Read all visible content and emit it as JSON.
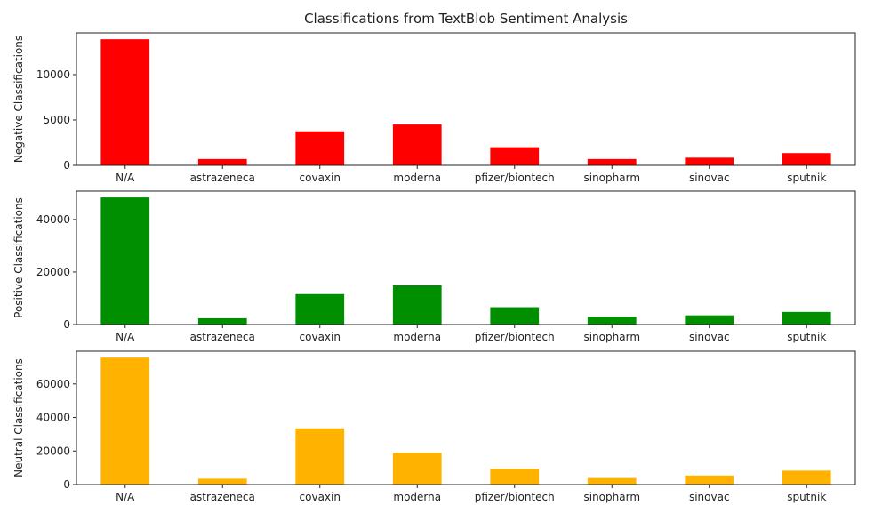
{
  "title": "Classifications from TextBlob Sentiment Analysis",
  "categories": [
    "N/A",
    "astrazeneca",
    "covaxin",
    "moderna",
    "pfizer/biontech",
    "sinopharm",
    "sinovac",
    "sputnik"
  ],
  "chart_data": [
    {
      "type": "bar",
      "title": "Classifications from TextBlob Sentiment Analysis",
      "ylabel": "Negative Classifications",
      "xlabel": "",
      "color": "#ff0000",
      "categories": [
        "N/A",
        "astrazeneca",
        "covaxin",
        "moderna",
        "pfizer/biontech",
        "sinopharm",
        "sinovac",
        "sputnik"
      ],
      "values": [
        13900,
        700,
        3750,
        4500,
        2000,
        700,
        850,
        1350
      ],
      "ylim": [
        0,
        14600
      ],
      "yticks": [
        0,
        5000,
        10000
      ],
      "ytick_labels": [
        "0",
        "5000",
        "10000"
      ],
      "grid": false,
      "legend": "none"
    },
    {
      "type": "bar",
      "ylabel": "Positive Classifications",
      "xlabel": "",
      "color": "#008f00",
      "categories": [
        "N/A",
        "astrazeneca",
        "covaxin",
        "moderna",
        "pfizer/biontech",
        "sinopharm",
        "sinovac",
        "sputnik"
      ],
      "values": [
        48400,
        2400,
        11600,
        14900,
        6600,
        3000,
        3500,
        4800
      ],
      "ylim": [
        0,
        50800
      ],
      "yticks": [
        0,
        20000,
        40000
      ],
      "ytick_labels": [
        "0",
        "20000",
        "40000"
      ],
      "grid": false,
      "legend": "none"
    },
    {
      "type": "bar",
      "ylabel": "Neutral Classifications",
      "xlabel": "",
      "color": "#ffb300",
      "categories": [
        "N/A",
        "astrazeneca",
        "covaxin",
        "moderna",
        "pfizer/biontech",
        "sinopharm",
        "sinovac",
        "sputnik"
      ],
      "values": [
        75700,
        3500,
        33500,
        19000,
        9400,
        3900,
        5400,
        8300
      ],
      "ylim": [
        0,
        79500
      ],
      "yticks": [
        0,
        20000,
        40000,
        60000
      ],
      "ytick_labels": [
        "0",
        "20000",
        "40000",
        "60000"
      ],
      "grid": false,
      "legend": "none"
    }
  ]
}
